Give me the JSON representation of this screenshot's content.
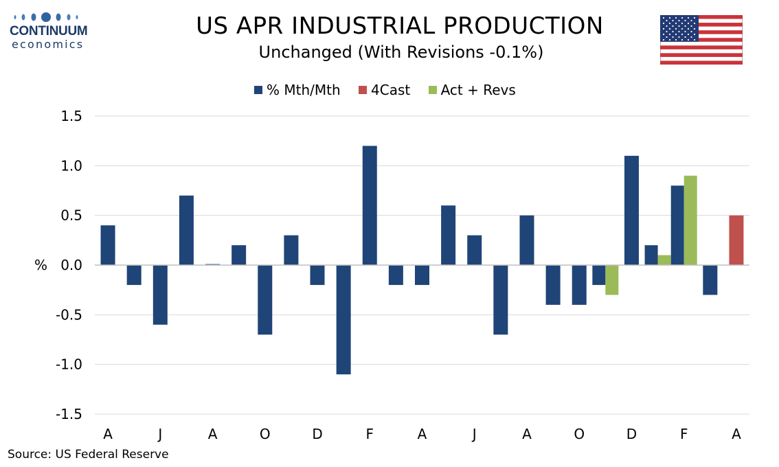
{
  "logo": {
    "name": "CONTINUUM",
    "sub": "economics",
    "color": "#1d3a66"
  },
  "title": "US APR INDUSTRIAL PRODUCTION",
  "subtitle": "Unchanged (With Revisions -0.1%)",
  "flag_icon": "us-flag-icon",
  "source": "Source: US Federal Reserve",
  "colors": {
    "mth": "#1f4477",
    "fcast": "#c0504d",
    "revs": "#9bbb59",
    "grid": "#d9d9d9"
  },
  "chart_data": {
    "type": "bar",
    "legend_position": "top-center",
    "grid": true,
    "ylabel": "%",
    "ylim": [
      -1.5,
      1.5
    ],
    "yticks": [
      "1.5",
      "1.0",
      "0.5",
      "0.0",
      "-0.5",
      "-1.0",
      "-1.5"
    ],
    "ytick_values": [
      1.5,
      1.0,
      0.5,
      0.0,
      -0.5,
      -1.0,
      -1.5
    ],
    "x_tick_labels": [
      "A",
      "J",
      "A",
      "O",
      "D",
      "F",
      "A",
      "J",
      "A",
      "O",
      "D",
      "F",
      "A"
    ],
    "series": [
      {
        "name": "% Mth/Mth",
        "color": "#1f4477",
        "values": [
          0.4,
          -0.2,
          -0.6,
          0.7,
          0.01,
          0.2,
          -0.7,
          0.3,
          -0.2,
          -1.1,
          1.2,
          -0.2,
          -0.2,
          0.6,
          0.3,
          -0.7,
          0.5,
          -0.4,
          -0.4,
          -0.2,
          1.1,
          0.2,
          0.8,
          -0.3,
          null
        ]
      },
      {
        "name": "4Cast",
        "color": "#c0504d",
        "values": [
          null,
          null,
          null,
          null,
          null,
          null,
          null,
          null,
          null,
          null,
          null,
          null,
          null,
          null,
          null,
          null,
          null,
          null,
          null,
          null,
          null,
          null,
          null,
          null,
          0.5
        ]
      },
      {
        "name": "Act + Revs",
        "color": "#9bbb59",
        "values": [
          null,
          null,
          null,
          null,
          null,
          null,
          null,
          null,
          null,
          null,
          null,
          null,
          null,
          null,
          null,
          null,
          null,
          null,
          null,
          -0.3,
          null,
          0.1,
          0.9,
          null,
          null
        ]
      }
    ]
  }
}
